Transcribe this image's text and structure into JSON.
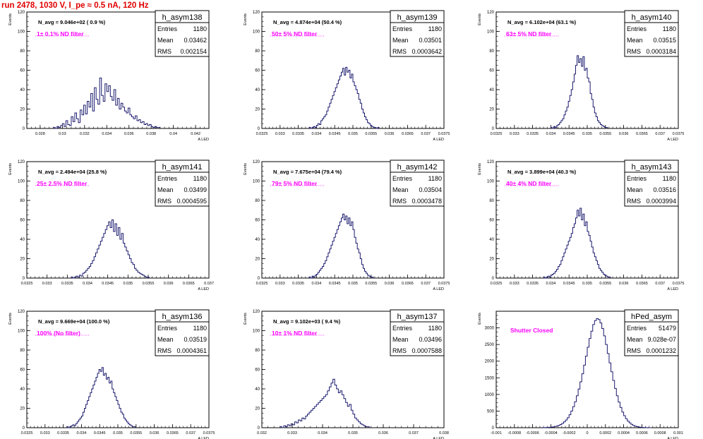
{
  "page": {
    "run_title": "run 2478,  1030 V, I_pe ≈ 0.5 nA, 120 Hz"
  },
  "colors": {
    "histogram": "#1a1a6e",
    "annotation": "#ff00ff",
    "title": "#e00000",
    "frame": "#000000"
  },
  "chart_data": [
    {
      "type": "histogram",
      "name": "h_asym138",
      "navg": "N_avg = 9.046e+02 ( 0.9 %)",
      "filter": "1± 0.1% ND filter",
      "stats": {
        "entries": "1180",
        "mean": "0.03462",
        "rms": "0.002154"
      },
      "xlabel": "A_LED",
      "ylabel": "Events",
      "xlim": [
        0.0268,
        0.0432
      ],
      "ylim": [
        0,
        120
      ],
      "xticks": [
        "0.028",
        "0.03",
        "0.032",
        "0.034",
        "0.036",
        "0.038",
        "0.04",
        "0.042"
      ],
      "yticks": [
        "0",
        "20",
        "40",
        "60",
        "80",
        "100",
        "120"
      ],
      "bins": {
        "start": 0.0292,
        "width": 0.00016,
        "counts": [
          1,
          0,
          2,
          1,
          3,
          5,
          2,
          8,
          4,
          3,
          12,
          7,
          16,
          10,
          6,
          19,
          14,
          24,
          15,
          28,
          22,
          36,
          18,
          42,
          30,
          25,
          52,
          34,
          28,
          46,
          38,
          44,
          33,
          29,
          40,
          24,
          31,
          20,
          26,
          22,
          18,
          16,
          21,
          14,
          12,
          10,
          13,
          8,
          9,
          6,
          7,
          4,
          5,
          3,
          4,
          2,
          1,
          2,
          1,
          1
        ]
      }
    },
    {
      "type": "histogram",
      "name": "h_asym139",
      "navg": "N_avg = 4.874e+04 (50.4 %)",
      "filter": "50± 5% ND filter",
      "stats": {
        "entries": "1180",
        "mean": "0.03501",
        "rms": "0.0003642"
      },
      "xlabel": "A_LED",
      "ylabel": "Events",
      "xlim": [
        0.0325,
        0.0375
      ],
      "ylim": [
        0,
        120
      ],
      "xticks": [
        "0.0325",
        "0.033",
        "0.0335",
        "0.034",
        "0.0345",
        "0.035",
        "0.0355",
        "0.036",
        "0.0365",
        "0.037",
        "0.0375"
      ],
      "yticks": [
        "0",
        "20",
        "40",
        "60",
        "80",
        "100",
        "120"
      ],
      "bins": {
        "start": 0.0338,
        "width": 4e-05,
        "counts": [
          1,
          0,
          1,
          2,
          1,
          3,
          5,
          4,
          8,
          10,
          12,
          14,
          18,
          22,
          26,
          30,
          34,
          38,
          42,
          46,
          50,
          54,
          58,
          62,
          55,
          63,
          58,
          60,
          52,
          56,
          48,
          44,
          40,
          36,
          30,
          26,
          20,
          16,
          12,
          9,
          6,
          5,
          3,
          2,
          1,
          1,
          0,
          1
        ]
      }
    },
    {
      "type": "histogram",
      "name": "h_asym140",
      "navg": "N_avg = 6.102e+04 (63.1 %)",
      "filter": "63± 5% ND filter",
      "stats": {
        "entries": "1180",
        "mean": "0.03515",
        "rms": "0.0003184"
      },
      "xlabel": "A_LED",
      "ylabel": "Events",
      "xlim": [
        0.0325,
        0.0375
      ],
      "ylim": [
        0,
        120
      ],
      "xticks": [
        "0.0325",
        "0.033",
        "0.0335",
        "0.034",
        "0.0345",
        "0.035",
        "0.0355",
        "0.036",
        "0.0365",
        "0.037",
        "0.0375"
      ],
      "yticks": [
        "0",
        "20",
        "40",
        "60",
        "80",
        "100",
        "120"
      ],
      "bins": {
        "start": 0.034,
        "width": 4e-05,
        "counts": [
          1,
          0,
          2,
          1,
          3,
          4,
          6,
          8,
          10,
          14,
          18,
          22,
          28,
          34,
          40,
          48,
          56,
          65,
          75,
          68,
          72,
          64,
          74,
          60,
          62,
          52,
          48,
          36,
          30,
          22,
          16,
          12,
          8,
          6,
          4,
          3,
          2,
          1,
          1
        ]
      }
    },
    {
      "type": "histogram",
      "name": "h_asym141",
      "navg": "N_avg = 2.494e+04 (25.8 %)",
      "filter": "25± 2.5% ND filter",
      "stats": {
        "entries": "1180",
        "mean": "0.03499",
        "rms": "0.0004595"
      },
      "xlabel": "A_LED",
      "ylabel": "Events",
      "xlim": [
        0.0325,
        0.037
      ],
      "ylim": [
        0,
        120
      ],
      "xticks": [
        "0.0325",
        "0.033",
        "0.0335",
        "0.034",
        "0.0345",
        "0.035",
        "0.0355",
        "0.036",
        "0.0365",
        "0.037"
      ],
      "yticks": [
        "0",
        "20",
        "40",
        "60",
        "80",
        "100",
        "120"
      ],
      "bins": {
        "start": 0.0336,
        "width": 4e-05,
        "counts": [
          1,
          0,
          1,
          2,
          1,
          3,
          2,
          5,
          6,
          8,
          10,
          12,
          15,
          18,
          22,
          26,
          30,
          34,
          38,
          42,
          46,
          50,
          54,
          58,
          52,
          60,
          48,
          56,
          44,
          52,
          40,
          46,
          36,
          32,
          28,
          24,
          20,
          16,
          14,
          10,
          8,
          6,
          5,
          4,
          3,
          2,
          1,
          1
        ]
      }
    },
    {
      "type": "histogram",
      "name": "h_asym142",
      "navg": "N_avg = 7.675e+04 (79.4 %)",
      "filter": "79± 5% ND filter",
      "stats": {
        "entries": "1180",
        "mean": "0.03504",
        "rms": "0.0003478"
      },
      "xlabel": "A_LED",
      "ylabel": "Events",
      "xlim": [
        0.0325,
        0.0375
      ],
      "ylim": [
        0,
        120
      ],
      "xticks": [
        "0.0325",
        "0.033",
        "0.0335",
        "0.034",
        "0.0345",
        "0.035",
        "0.0355",
        "0.036",
        "0.0365",
        "0.037",
        "0.0375"
      ],
      "yticks": [
        "0",
        "20",
        "40",
        "60",
        "80",
        "100",
        "120"
      ],
      "bins": {
        "start": 0.0338,
        "width": 4e-05,
        "counts": [
          1,
          0,
          2,
          1,
          3,
          4,
          6,
          8,
          10,
          12,
          15,
          18,
          22,
          26,
          30,
          34,
          38,
          42,
          46,
          50,
          54,
          58,
          62,
          66,
          60,
          64,
          56,
          62,
          54,
          58,
          50,
          42,
          36,
          30,
          26,
          20,
          14,
          10,
          7,
          5,
          3,
          2,
          1,
          1
        ]
      }
    },
    {
      "type": "histogram",
      "name": "h_asym143",
      "navg": "N_avg = 3.899e+04 (40.3 %)",
      "filter": "40± 4% ND filter",
      "stats": {
        "entries": "1180",
        "mean": "0.03516",
        "rms": "0.0003994"
      },
      "xlabel": "A_LED",
      "ylabel": "Events",
      "xlim": [
        0.0325,
        0.0375
      ],
      "ylim": [
        0,
        120
      ],
      "xticks": [
        "0.0325",
        "0.033",
        "0.0335",
        "0.034",
        "0.0345",
        "0.035",
        "0.0355",
        "0.036",
        "0.0365",
        "0.037",
        "0.0375"
      ],
      "yticks": [
        "0",
        "20",
        "40",
        "60",
        "80",
        "100",
        "120"
      ],
      "bins": {
        "start": 0.0338,
        "width": 4e-05,
        "counts": [
          1,
          0,
          1,
          2,
          1,
          3,
          4,
          5,
          7,
          9,
          12,
          14,
          18,
          22,
          26,
          30,
          34,
          38,
          42,
          46,
          52,
          56,
          62,
          70,
          64,
          72,
          60,
          66,
          54,
          58,
          48,
          44,
          38,
          32,
          26,
          22,
          18,
          14,
          10,
          8,
          6,
          4,
          3,
          2,
          1,
          1
        ]
      }
    },
    {
      "type": "histogram",
      "name": "h_asym136",
      "navg": "N_avg = 9.669e+04 (100.0 %)",
      "filter": "100% (No filter)",
      "stats": {
        "entries": "1180",
        "mean": "0.03519",
        "rms": "0.0004361"
      },
      "xlabel": "A_LED",
      "ylabel": "Events",
      "xlim": [
        0.0325,
        0.0375
      ],
      "ylim": [
        0,
        120
      ],
      "xticks": [
        "0.0325",
        "0.033",
        "0.0335",
        "0.034",
        "0.0345",
        "0.035",
        "0.0355",
        "0.036",
        "0.0365",
        "0.037",
        "0.0375"
      ],
      "yticks": [
        "0",
        "20",
        "40",
        "60",
        "80",
        "100",
        "120"
      ],
      "bins": {
        "start": 0.0336,
        "width": 4e-05,
        "counts": [
          1,
          0,
          1,
          2,
          3,
          2,
          4,
          6,
          8,
          10,
          12,
          16,
          20,
          24,
          28,
          32,
          36,
          40,
          44,
          48,
          52,
          56,
          60,
          58,
          62,
          54,
          56,
          50,
          52,
          46,
          48,
          40,
          36,
          32,
          28,
          24,
          20,
          16,
          14,
          10,
          8,
          6,
          4,
          3,
          2,
          1,
          1
        ]
      }
    },
    {
      "type": "histogram",
      "name": "h_asym137",
      "navg": "N_avg = 9.102e+03 ( 9.4 %)",
      "filter": "10± 1% ND filter",
      "stats": {
        "entries": "1180",
        "mean": "0.03496",
        "rms": "0.0007588"
      },
      "xlabel": "A_LED",
      "ylabel": "Events",
      "xlim": [
        0.032,
        0.038
      ],
      "ylim": [
        0,
        120
      ],
      "xticks": [
        "0.032",
        "0.033",
        "0.034",
        "0.035",
        "0.036",
        "0.037",
        "0.038"
      ],
      "yticks": [
        "0",
        "20",
        "40",
        "60",
        "80",
        "100",
        "120"
      ],
      "bins": {
        "start": 0.0326,
        "width": 6e-05,
        "counts": [
          1,
          0,
          2,
          1,
          3,
          2,
          4,
          3,
          6,
          5,
          8,
          7,
          10,
          9,
          12,
          14,
          16,
          18,
          20,
          22,
          24,
          26,
          28,
          30,
          32,
          34,
          38,
          42,
          46,
          50,
          44,
          40,
          36,
          38,
          34,
          30,
          26,
          22,
          24,
          18,
          14,
          10,
          8,
          6,
          4,
          3,
          2,
          1,
          1
        ]
      }
    },
    {
      "type": "histogram",
      "name": "hPed_asym",
      "navg": "",
      "filter": "Shutter Closed",
      "stats": {
        "entries": "51479",
        "mean": "9.028e-07",
        "rms": "0.0001232"
      },
      "xlabel": "A_LED",
      "ylabel": "Events",
      "xlim": [
        -0.001,
        0.001
      ],
      "ylim": [
        0,
        3500
      ],
      "xticks": [
        "-0.001",
        "-0.0008",
        "-0.0006",
        "-0.0004",
        "-0.0002",
        "0",
        "0.0002",
        "0.0004",
        "0.0006",
        "0.0008",
        "0.001"
      ],
      "yticks": [
        "0",
        "500",
        "1000",
        "1500",
        "2000",
        "2500",
        "3000"
      ],
      "bins": {
        "start": -0.0005,
        "width": 2e-05,
        "counts": [
          2,
          3,
          5,
          8,
          12,
          18,
          25,
          36,
          50,
          70,
          95,
          130,
          175,
          230,
          300,
          390,
          500,
          630,
          780,
          960,
          1160,
          1380,
          1620,
          1880,
          2150,
          2420,
          2680,
          2900,
          3100,
          3220,
          3280,
          3250,
          3150,
          2980,
          2760,
          2500,
          2230,
          1950,
          1680,
          1420,
          1180,
          960,
          770,
          610,
          470,
          360,
          270,
          200,
          145,
          100,
          70,
          48,
          32,
          20,
          13,
          8,
          5,
          3,
          2,
          1
        ]
      }
    }
  ]
}
